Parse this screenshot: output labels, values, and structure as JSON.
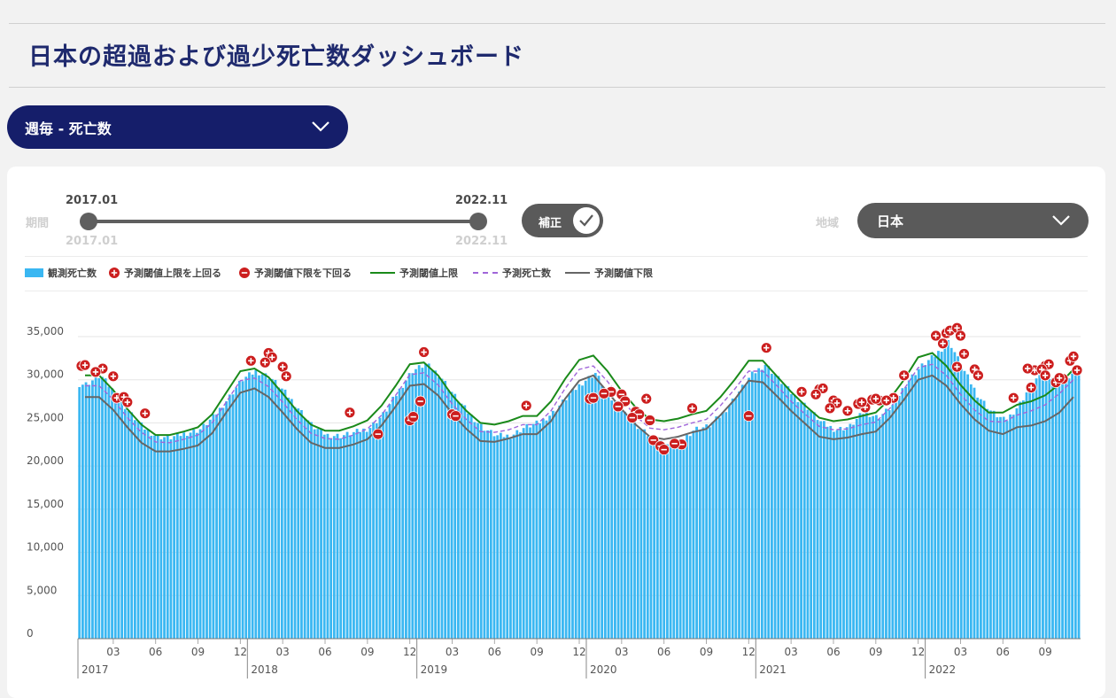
{
  "title": "日本の超過および過少死亡数ダッシュボード",
  "metric_dropdown": {
    "label": "週毎 - 死亡数"
  },
  "period": {
    "label": "期間",
    "start": "2017.01",
    "end": "2022.11",
    "start_sub": "2017.01",
    "end_sub": "2022.11"
  },
  "adjust_toggle": {
    "label": "補正",
    "checked": true
  },
  "region": {
    "label": "地域",
    "value": "日本"
  },
  "legend": {
    "observed": "観測死亡数",
    "above": "予測閾値上限を上回る",
    "below": "予測閾値下限を下回る",
    "upper": "予測閾値上限",
    "expected": "予測死亡数",
    "lower": "予測閾値下限"
  },
  "colors": {
    "bar": "#3ab7f2",
    "upper": "#1a8a1a",
    "expected": "#a066d9",
    "lower": "#666666",
    "marker": "#cc1e1e",
    "accent": "#151e6a"
  },
  "chart_data": {
    "type": "bar",
    "start_date": "2017-01",
    "end_date": "2022-11",
    "ylim": [
      0,
      36000
    ],
    "y_ticks": [
      "0",
      "5,000",
      "10,000",
      "15,000",
      "20,000",
      "25,000",
      "30,000",
      "35,000"
    ],
    "x_month_ticks": [
      "03",
      "06",
      "09",
      "12"
    ],
    "x_year_labels": [
      "2017",
      "2018",
      "2019",
      "2020",
      "2021",
      "2022"
    ],
    "grid": true,
    "legend_position": "top-left",
    "series": [
      {
        "name": "観測死亡数",
        "kind": "bar",
        "monthly_values": [
          29500,
          30500,
          28500,
          26300,
          24500,
          23400,
          23300,
          23800,
          24200,
          25700,
          27800,
          30000,
          31000,
          30300,
          28600,
          26700,
          24600,
          23600,
          23500,
          23900,
          24400,
          26000,
          28500,
          31000,
          31800,
          30500,
          28200,
          26200,
          24500,
          23500,
          23500,
          24500,
          25000,
          26200,
          28000,
          29600,
          30800,
          28000,
          26200,
          24500,
          23200,
          22500,
          22800,
          24300,
          24600,
          26100,
          28300,
          30500,
          31800,
          30000,
          28200,
          26800,
          25000,
          24200,
          24600,
          26300,
          25600,
          27000,
          29700,
          31500,
          32800,
          34500,
          31200,
          28300,
          26300,
          25200,
          27200,
          30000,
          30500,
          29800,
          31000
        ]
      },
      {
        "name": "予測閾値上限",
        "kind": "line",
        "monthly_values": [
          30500,
          30500,
          28800,
          26600,
          24800,
          23600,
          23600,
          24000,
          24500,
          26000,
          28500,
          31000,
          31300,
          30300,
          28400,
          26400,
          24800,
          24100,
          24100,
          24600,
          25300,
          27000,
          29300,
          31800,
          32000,
          30500,
          28200,
          26400,
          25000,
          24800,
          25200,
          25800,
          25800,
          27500,
          30100,
          32300,
          32800,
          31000,
          28700,
          26800,
          25400,
          25200,
          25500,
          26000,
          26400,
          28000,
          30000,
          32200,
          32200,
          30400,
          28600,
          27000,
          25600,
          25200,
          25400,
          25800,
          26200,
          27800,
          30000,
          32600,
          33100,
          31600,
          29400,
          27600,
          26200,
          26200,
          27100,
          27500,
          28200,
          29500,
          31200
        ]
      },
      {
        "name": "予測死亡数",
        "kind": "line",
        "monthly_values": [
          29300,
          29300,
          27700,
          25600,
          23900,
          22800,
          22700,
          23100,
          23600,
          25000,
          27400,
          29900,
          30200,
          29200,
          27400,
          25400,
          23800,
          23200,
          23100,
          23600,
          24300,
          25900,
          28200,
          30600,
          30800,
          29400,
          27200,
          25400,
          24000,
          23900,
          24200,
          24800,
          24800,
          26400,
          29000,
          31200,
          31600,
          29800,
          27700,
          25800,
          24400,
          24200,
          24500,
          25000,
          25400,
          27000,
          28900,
          31000,
          31000,
          29300,
          27500,
          26000,
          24600,
          24200,
          24300,
          24800,
          25100,
          26700,
          28900,
          31400,
          31800,
          30500,
          28300,
          26500,
          25200,
          25100,
          25900,
          26400,
          27100,
          28400,
          30000
        ]
      },
      {
        "name": "予測閾値下限",
        "kind": "line",
        "monthly_values": [
          28000,
          28000,
          26500,
          24500,
          22700,
          21700,
          21700,
          22000,
          22400,
          23800,
          26200,
          28500,
          29000,
          28000,
          26200,
          24300,
          22700,
          22100,
          22100,
          22500,
          23100,
          24700,
          26900,
          29300,
          29500,
          28200,
          26100,
          24300,
          22900,
          22800,
          23200,
          23700,
          23700,
          25200,
          27800,
          29900,
          30500,
          28600,
          26600,
          24800,
          23400,
          23100,
          23400,
          23900,
          24300,
          25900,
          27700,
          29900,
          29700,
          28100,
          26400,
          24900,
          23400,
          23100,
          23300,
          23700,
          24000,
          25600,
          27700,
          30000,
          30500,
          29300,
          27200,
          25400,
          24100,
          23700,
          24500,
          24700,
          25200,
          26200,
          28000
        ]
      }
    ],
    "markers_above": [
      {
        "date": "2017-01",
        "value": 31600
      },
      {
        "date": "2017-01",
        "value": 31700
      },
      {
        "date": "2017-02",
        "value": 31300
      },
      {
        "date": "2017-02",
        "value": 30900
      },
      {
        "date": "2017-03",
        "value": 30400
      },
      {
        "date": "2017-03",
        "value": 27900
      },
      {
        "date": "2017-04",
        "value": 28000
      },
      {
        "date": "2017-04",
        "value": 27400
      },
      {
        "date": "2017-05",
        "value": 26100
      },
      {
        "date": "2018-01",
        "value": 32200
      },
      {
        "date": "2018-02",
        "value": 33100
      },
      {
        "date": "2018-02",
        "value": 32600
      },
      {
        "date": "2018-02",
        "value": 32000
      },
      {
        "date": "2018-03",
        "value": 31500
      },
      {
        "date": "2018-03",
        "value": 30400
      },
      {
        "date": "2018-08",
        "value": 26200
      },
      {
        "date": "2019-01",
        "value": 33200
      },
      {
        "date": "2019-08",
        "value": 27000
      },
      {
        "date": "2020-05",
        "value": 27800
      },
      {
        "date": "2020-08",
        "value": 26700
      },
      {
        "date": "2021-01",
        "value": 33700
      },
      {
        "date": "2021-04",
        "value": 28600
      },
      {
        "date": "2021-05",
        "value": 28900
      },
      {
        "date": "2021-05",
        "value": 29000
      },
      {
        "date": "2021-05",
        "value": 28300
      },
      {
        "date": "2021-06",
        "value": 27600
      },
      {
        "date": "2021-06",
        "value": 27300
      },
      {
        "date": "2021-06",
        "value": 26700
      },
      {
        "date": "2021-07",
        "value": 26400
      },
      {
        "date": "2021-08",
        "value": 26800
      },
      {
        "date": "2021-08",
        "value": 27200
      },
      {
        "date": "2021-08",
        "value": 27400
      },
      {
        "date": "2021-09",
        "value": 27600
      },
      {
        "date": "2021-09",
        "value": 27700
      },
      {
        "date": "2021-09",
        "value": 27800
      },
      {
        "date": "2021-10",
        "value": 27900
      },
      {
        "date": "2021-10",
        "value": 27600
      },
      {
        "date": "2021-11",
        "value": 30500
      },
      {
        "date": "2022-01",
        "value": 35100
      },
      {
        "date": "2022-02",
        "value": 34200
      },
      {
        "date": "2022-02",
        "value": 35400
      },
      {
        "date": "2022-02",
        "value": 35700
      },
      {
        "date": "2022-03",
        "value": 36000
      },
      {
        "date": "2022-03",
        "value": 35100
      },
      {
        "date": "2022-03",
        "value": 33000
      },
      {
        "date": "2022-03",
        "value": 31500
      },
      {
        "date": "2022-04",
        "value": 31200
      },
      {
        "date": "2022-04",
        "value": 30500
      },
      {
        "date": "2022-07",
        "value": 27900
      },
      {
        "date": "2022-08",
        "value": 29100
      },
      {
        "date": "2022-08",
        "value": 31100
      },
      {
        "date": "2022-08",
        "value": 31300
      },
      {
        "date": "2022-09",
        "value": 31600
      },
      {
        "date": "2022-09",
        "value": 31800
      },
      {
        "date": "2022-09",
        "value": 31200
      },
      {
        "date": "2022-09",
        "value": 30500
      },
      {
        "date": "2022-10",
        "value": 30100
      },
      {
        "date": "2022-10",
        "value": 29700
      },
      {
        "date": "2022-10",
        "value": 30200
      },
      {
        "date": "2022-11",
        "value": 31100
      },
      {
        "date": "2022-11",
        "value": 32200
      },
      {
        "date": "2022-11",
        "value": 32700
      }
    ],
    "markers_below": [
      {
        "date": "2018-10",
        "value": 23700
      },
      {
        "date": "2018-12",
        "value": 25300
      },
      {
        "date": "2018-12",
        "value": 25700
      },
      {
        "date": "2019-01",
        "value": 27500
      },
      {
        "date": "2019-03",
        "value": 26000
      },
      {
        "date": "2019-03",
        "value": 25800
      },
      {
        "date": "2020-01",
        "value": 27800
      },
      {
        "date": "2020-01",
        "value": 27900
      },
      {
        "date": "2020-02",
        "value": 28600
      },
      {
        "date": "2020-02",
        "value": 28400
      },
      {
        "date": "2020-03",
        "value": 28300
      },
      {
        "date": "2020-03",
        "value": 27500
      },
      {
        "date": "2020-03",
        "value": 26900
      },
      {
        "date": "2020-04",
        "value": 26300
      },
      {
        "date": "2020-04",
        "value": 26000
      },
      {
        "date": "2020-04",
        "value": 25600
      },
      {
        "date": "2020-05",
        "value": 25300
      },
      {
        "date": "2020-05",
        "value": 23000
      },
      {
        "date": "2020-06",
        "value": 22300
      },
      {
        "date": "2020-06",
        "value": 21900
      },
      {
        "date": "2020-07",
        "value": 22500
      },
      {
        "date": "2020-07",
        "value": 22600
      },
      {
        "date": "2020-12",
        "value": 25800
      }
    ]
  }
}
